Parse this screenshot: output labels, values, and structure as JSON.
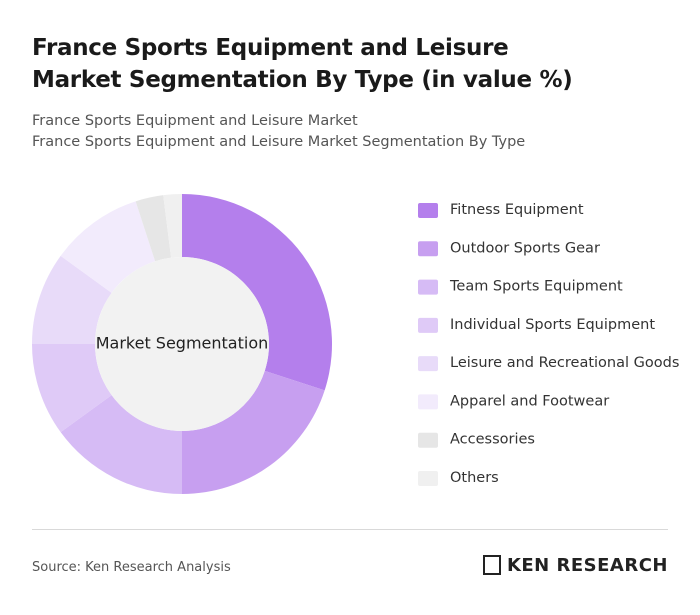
{
  "header": {
    "title": "France Sports Equipment and Leisure Market Segmentation By Type (in value %)",
    "subtitle_lines": [
      "France Sports Equipment and Leisure Market",
      "France Sports Equipment and Leisure Market Segmentation By Type"
    ]
  },
  "chart_data": {
    "type": "donut",
    "center_label": "Market Segmentation",
    "categories": [
      "Fitness Equipment",
      "Outdoor Sports Gear",
      "Team Sports Equipment",
      "Individual Sports Equipment",
      "Leisure and Recreational Goods",
      "Apparel and Footwear",
      "Accessories",
      "Others"
    ],
    "values": [
      30,
      20,
      15,
      10,
      10,
      10,
      3,
      2
    ],
    "colors": [
      "#b47fec",
      "#c79ff0",
      "#d6bbf5",
      "#dfcaf7",
      "#e8dbf9",
      "#f2ebfc",
      "#e6e6e6",
      "#f0f0f0"
    ],
    "legend": "right"
  },
  "footer": {
    "source": "Source: Ken Research Analysis",
    "logo": "KEN RESEARCH"
  }
}
